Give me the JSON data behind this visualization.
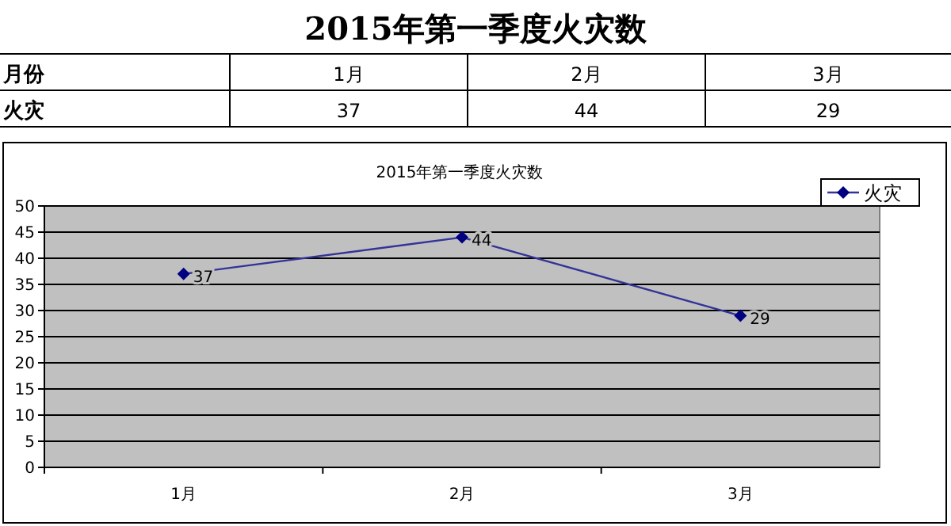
{
  "chart_data": {
    "type": "line",
    "title": "2015年第一季度火灾数",
    "subtitle": "2015年第一季度火灾数",
    "categories": [
      "1月",
      "2月",
      "3月"
    ],
    "series": [
      {
        "name": "火灾",
        "color": "#333399",
        "values": [
          37,
          44,
          29
        ],
        "value_labels": [
          "37",
          "44",
          "29"
        ]
      }
    ],
    "ylim": [
      0,
      50
    ],
    "yticks": [
      0,
      5,
      10,
      15,
      20,
      25,
      30,
      35,
      40,
      45,
      50
    ],
    "grid": "y",
    "legend": "top right",
    "marker": "diamond",
    "line_style": "solid",
    "annotations": [
      "月份",
      "37",
      "44",
      "29"
    ]
  }
}
